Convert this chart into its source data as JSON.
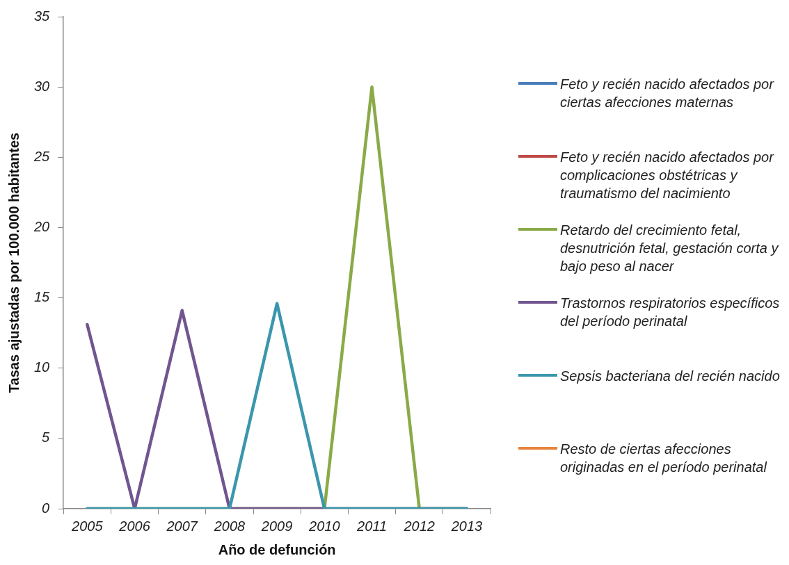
{
  "chart_data": {
    "type": "line",
    "xlabel": "Año de defunción",
    "ylabel": "Tasas ajustadas por 100.000 habitantes",
    "categories": [
      "2005",
      "2006",
      "2007",
      "2008",
      "2009",
      "2010",
      "2011",
      "2012",
      "2013"
    ],
    "series": [
      {
        "name": "Feto y recién nacido afectados por ciertas afecciones maternas",
        "color": "#4a7ebb",
        "values": [
          null,
          null,
          null,
          null,
          null,
          null,
          null,
          null,
          null
        ]
      },
      {
        "name": "Feto y recién nacido afectados por complicaciones obstétricas y traumatismo del nacimiento",
        "color": "#be4b48",
        "values": [
          null,
          null,
          null,
          null,
          null,
          null,
          null,
          null,
          null
        ]
      },
      {
        "name": "Retardo del crecimiento fetal, desnutrición fetal, gestación corta y bajo peso al nacer",
        "color": "#8aaa48",
        "values": [
          0,
          0,
          0,
          0,
          0,
          0,
          30,
          0,
          0
        ]
      },
      {
        "name": "Trastornos respiratorios específicos del período perinatal",
        "color": "#71558f",
        "values": [
          13.1,
          0,
          14.1,
          0,
          0,
          0,
          0,
          0,
          0
        ]
      },
      {
        "name": "Sepsis bacteriana del recién nacido",
        "color": "#3b96ad",
        "values": [
          0,
          0,
          0,
          0,
          14.6,
          0,
          0,
          0,
          0
        ]
      },
      {
        "name": "Resto de ciertas afecciones originadas en el período perinatal",
        "color": "#e6843d",
        "values": [
          null,
          null,
          null,
          null,
          null,
          null,
          null,
          null,
          null
        ]
      }
    ],
    "ylim": [
      0,
      35
    ],
    "yticks": [
      0,
      5,
      10,
      15,
      20,
      25,
      30,
      35
    ],
    "grid": false,
    "legend": "right",
    "marker": "none",
    "line_style": "solid"
  }
}
